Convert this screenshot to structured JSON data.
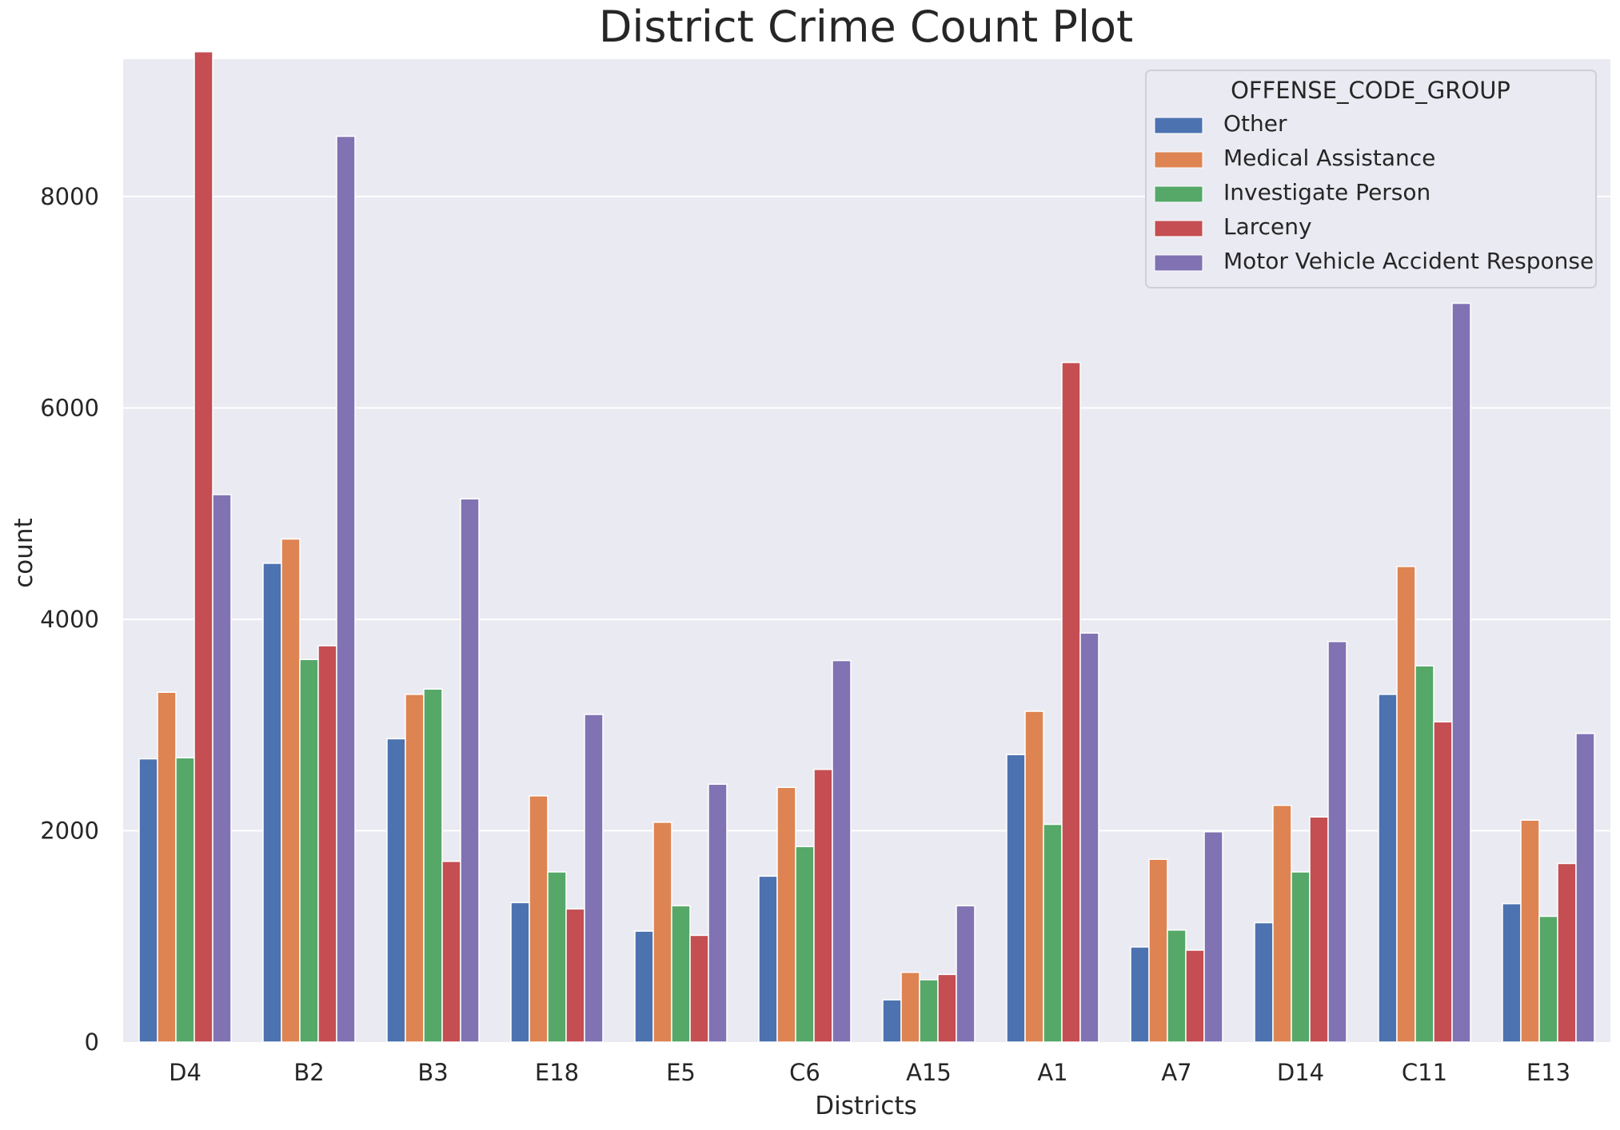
{
  "chart_data": {
    "type": "bar",
    "title": "District Crime Count Plot",
    "xlabel": "Districts",
    "ylabel": "count",
    "ylim": [
      0,
      9300
    ],
    "yticks": [
      0,
      2000,
      4000,
      6000,
      8000
    ],
    "ytick_labels": [
      "0",
      "2000",
      "4000",
      "6000",
      "8000"
    ],
    "grid": true,
    "legend_title": "OFFENSE_CODE_GROUP",
    "legend_position": "top-right",
    "categories": [
      "D4",
      "B2",
      "B3",
      "E18",
      "E5",
      "C6",
      "A15",
      "A1",
      "A7",
      "D14",
      "C11",
      "E13"
    ],
    "series": [
      {
        "name": "Other",
        "color": "#4c72b0",
        "values": [
          2680,
          4530,
          2870,
          1320,
          1050,
          1570,
          400,
          2720,
          900,
          1130,
          3290,
          1310
        ]
      },
      {
        "name": "Medical Assistance",
        "color": "#dd8452",
        "values": [
          3310,
          4760,
          3290,
          2330,
          2080,
          2410,
          660,
          3130,
          1730,
          2240,
          4500,
          2100
        ]
      },
      {
        "name": "Investigate Person",
        "color": "#55a868",
        "values": [
          2690,
          3620,
          3340,
          1610,
          1290,
          1850,
          590,
          2060,
          1060,
          1610,
          3560,
          1190
        ]
      },
      {
        "name": "Larceny",
        "color": "#c44e52",
        "values": [
          9370,
          3750,
          1710,
          1260,
          1010,
          2580,
          640,
          6430,
          870,
          2130,
          3030,
          1690
        ]
      },
      {
        "name": "Motor Vehicle Accident Response",
        "color": "#8172b3",
        "values": [
          5180,
          8570,
          5140,
          3100,
          2440,
          3610,
          1290,
          3870,
          1990,
          3790,
          6990,
          2920
        ]
      }
    ]
  },
  "colors": {
    "plot_background": "#eaeaf2",
    "grid": "#ffffff",
    "text": "#262626"
  }
}
